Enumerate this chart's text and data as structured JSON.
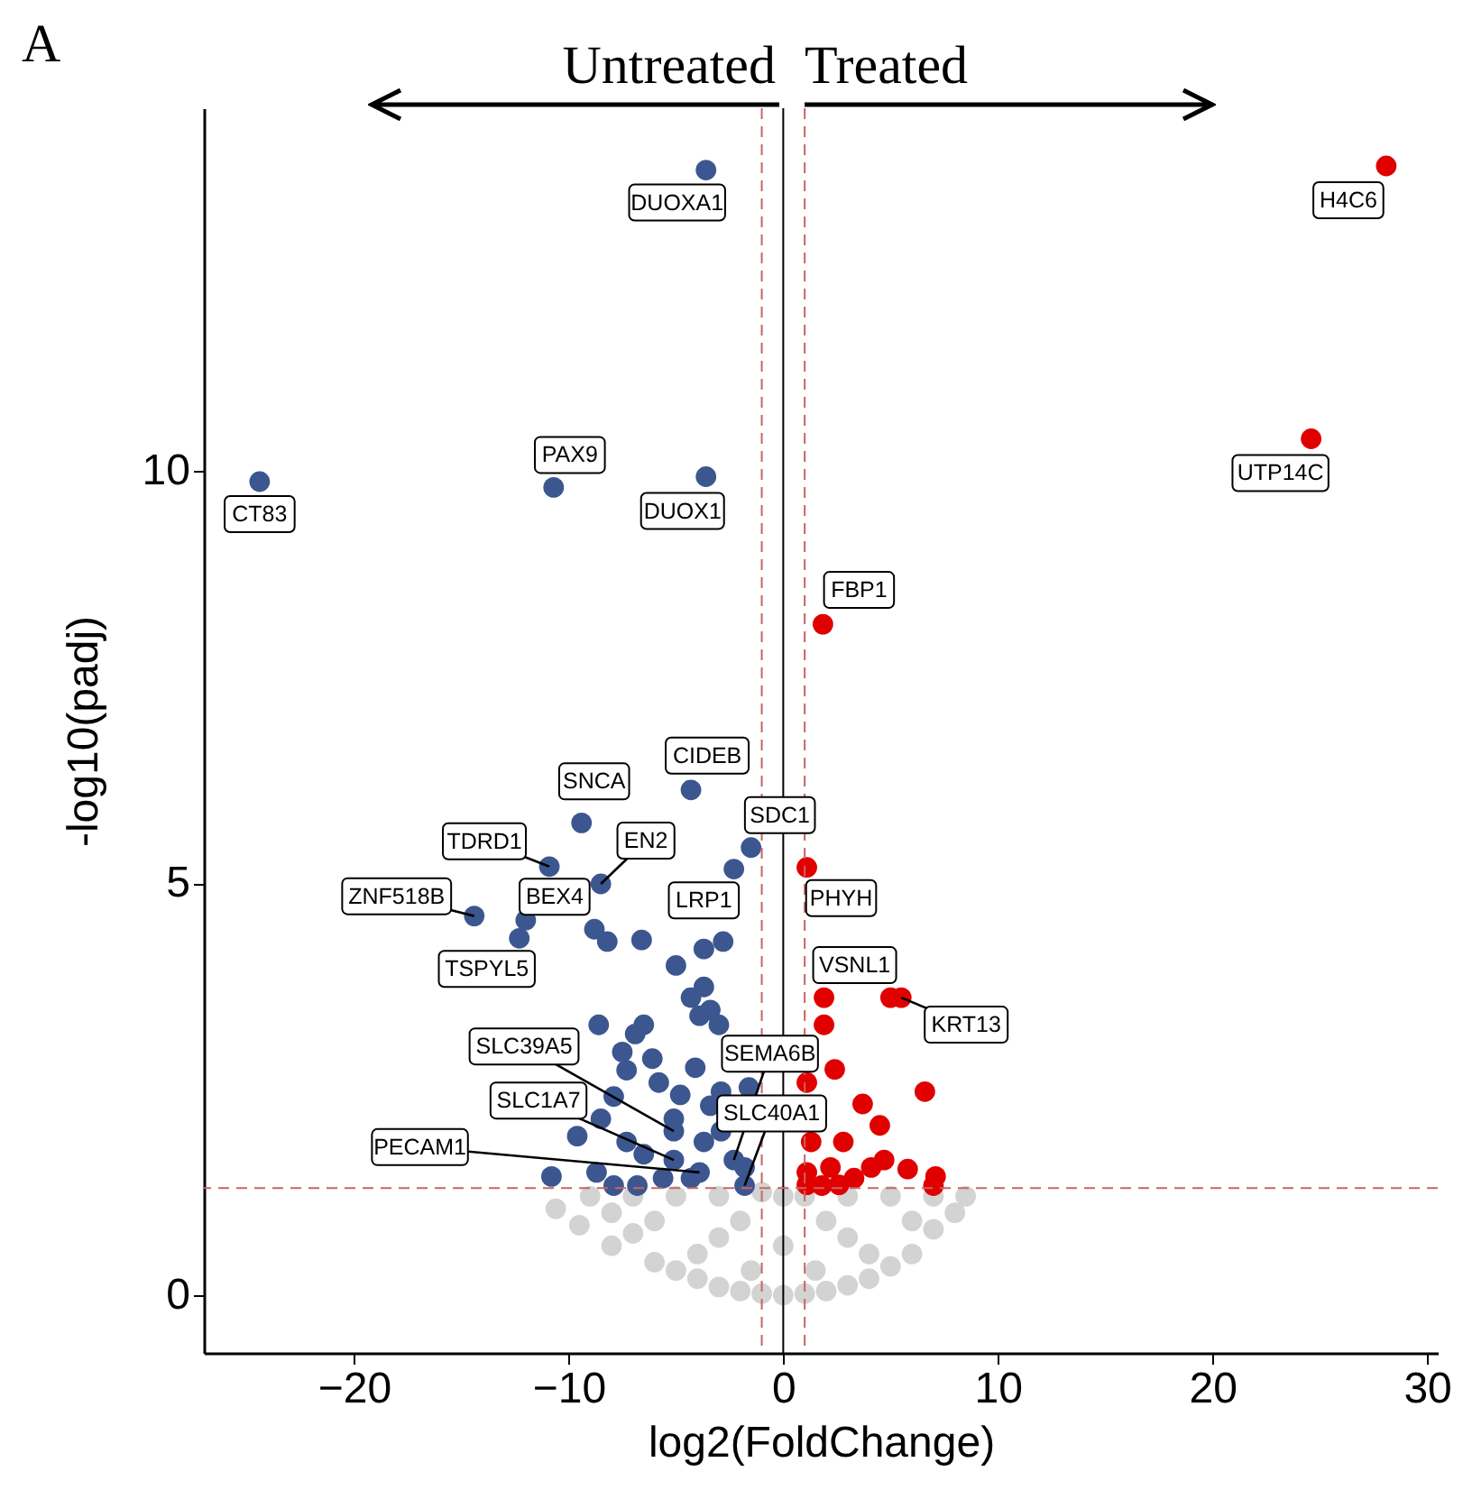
{
  "chart_data": {
    "type": "scatter",
    "xlabel": "log2(FoldChange)",
    "ylabel": "-log10(padj)",
    "xlim": [
      -27,
      30.5
    ],
    "xticks": [
      -20,
      -10,
      0,
      10,
      20,
      30
    ],
    "ylim": [
      -0.7,
      14.4
    ],
    "yticks": [
      0,
      5,
      10
    ],
    "grid": false,
    "marker": "circle",
    "series": [
      {
        "color": "#d3d3d3",
        "x": [
          -10.6,
          -9.5,
          -8,
          -7,
          -6,
          -5,
          -4,
          -3,
          -2,
          -1,
          0,
          1,
          2,
          3,
          4,
          5,
          6,
          7,
          8,
          8.5,
          -9,
          -7,
          -5,
          -3,
          -1,
          0,
          1,
          3,
          5,
          7,
          -6,
          -3,
          0,
          3,
          6,
          -4,
          -1.5,
          1.5,
          4,
          -8,
          -2,
          2
        ],
        "values": [
          1.05,
          0.85,
          0.6,
          0.75,
          0.4,
          0.3,
          0.2,
          0.1,
          0.05,
          0.02,
          0,
          0.02,
          0.05,
          0.12,
          0.2,
          0.35,
          0.5,
          0.8,
          1.0,
          1.2,
          1.2,
          1.2,
          1.2,
          1.2,
          1.25,
          1.2,
          1.2,
          1.2,
          1.2,
          1.2,
          0.9,
          0.7,
          0.6,
          0.7,
          0.9,
          0.5,
          0.3,
          0.3,
          0.5,
          1.0,
          0.9,
          0.9
        ]
      },
      {
        "color": "#3c5690",
        "x": [
          -3.6,
          -24.4,
          -10.7,
          -3.6,
          -4.3,
          -9.4,
          -1.5,
          -10.9,
          -2.3,
          -8.5,
          -14.4,
          -12.0,
          -12.3,
          -8.8,
          -8.2,
          -6.6,
          -3.7,
          -2.8,
          -5.0,
          -3.7,
          -4.3,
          -3.4,
          -3.9,
          -3.0,
          -8.6,
          -6.5,
          -6.9,
          -7.5,
          -6.1,
          -7.3,
          -4.1,
          -5.8,
          -7.9,
          -4.8,
          -2.9,
          -1.6,
          -9.6,
          -8.5,
          -7.3,
          -10.8,
          -8.7,
          -6.5,
          -5.6,
          -4.3,
          -3.7,
          -2.9,
          -5.1,
          -3.4,
          -1.8,
          -7.9,
          -6.8,
          -5.1,
          -5.1,
          -3.9,
          -2.3,
          -1.8
        ],
        "values": [
          13.65,
          9.87,
          9.8,
          9.93,
          6.13,
          5.73,
          5.43,
          5.2,
          5.17,
          4.99,
          4.6,
          4.55,
          4.33,
          4.44,
          4.29,
          4.31,
          4.2,
          4.29,
          4.0,
          3.74,
          3.61,
          3.46,
          3.39,
          3.28,
          3.28,
          3.28,
          3.17,
          2.95,
          2.87,
          2.73,
          2.76,
          2.58,
          2.41,
          2.43,
          2.47,
          2.52,
          1.93,
          2.14,
          1.86,
          1.44,
          1.49,
          1.71,
          1.42,
          1.42,
          1.86,
          1.99,
          2.14,
          2.3,
          1.55,
          1.33,
          1.33,
          1.99,
          1.64,
          1.49,
          1.64,
          1.33
        ]
      },
      {
        "color": "#e00000",
        "x": [
          28.1,
          24.6,
          1.85,
          1.1,
          1.9,
          5.0,
          5.5,
          1.9,
          2.4,
          6.6,
          1.1,
          3.7,
          4.5,
          2.8,
          4.7,
          5.8,
          7.1,
          7.0,
          1.3,
          1.1,
          2.2,
          3.3,
          4.1,
          1.1,
          1.8,
          2.6
        ],
        "values": [
          13.7,
          10.39,
          8.14,
          5.19,
          3.61,
          3.61,
          3.61,
          3.28,
          2.74,
          2.47,
          2.58,
          2.32,
          2.06,
          1.86,
          1.64,
          1.53,
          1.44,
          1.33,
          1.86,
          1.49,
          1.55,
          1.42,
          1.55,
          1.34,
          1.33,
          1.34
        ]
      }
    ],
    "ref_lines": [
      {
        "axis": "x",
        "value": 0,
        "color": "#000000",
        "line_style": "solid"
      },
      {
        "axis": "x",
        "value": -1,
        "color": "#c86464",
        "line_style": "dashed"
      },
      {
        "axis": "x",
        "value": 1,
        "color": "#c86464",
        "line_style": "dashed"
      },
      {
        "axis": "y",
        "value": 1.3,
        "color": "#c86464",
        "line_style": "dashed"
      }
    ],
    "annotations": [
      "A",
      "Untreated",
      "Treated",
      {
        "text": "DUOXA1",
        "x": -3.6,
        "y": 13.65
      },
      {
        "text": "CT83",
        "x": -24.4,
        "y": 9.87
      },
      {
        "text": "PAX9",
        "x": -10.7,
        "y": 9.8
      },
      {
        "text": "DUOX1",
        "x": -3.6,
        "y": 9.93
      },
      {
        "text": "H4C6",
        "x": 28.1,
        "y": 13.7
      },
      {
        "text": "UTP14C",
        "x": 24.6,
        "y": 10.39
      },
      {
        "text": "FBP1",
        "x": 1.85,
        "y": 8.14
      },
      {
        "text": "CIDEB",
        "x": -4.3,
        "y": 6.13
      },
      {
        "text": "SNCA",
        "x": -9.4,
        "y": 5.73
      },
      {
        "text": "SDC1",
        "x": -1.5,
        "y": 5.43
      },
      {
        "text": "TDRD1",
        "x": -10.9,
        "y": 5.2
      },
      {
        "text": "EN2",
        "x": -8.5,
        "y": 4.99
      },
      {
        "text": "ZNF518B",
        "x": -14.4,
        "y": 4.6
      },
      {
        "text": "BEX4",
        "x": -12.0,
        "y": 4.55
      },
      {
        "text": "TSPYL5",
        "x": -12.3,
        "y": 4.33
      },
      {
        "text": "LRP1",
        "x": -3.7,
        "y": 4.2
      },
      {
        "text": "PHYH",
        "x": 1.1,
        "y": 5.19
      },
      {
        "text": "VSNL1",
        "x": 1.9,
        "y": 3.61
      },
      {
        "text": "KRT13",
        "x": 5.5,
        "y": 3.61
      },
      {
        "text": "SLC39A5",
        "x": -5.1,
        "y": 1.99
      },
      {
        "text": "SLC1A7",
        "x": -5.1,
        "y": 1.64
      },
      {
        "text": "PECAM1",
        "x": -3.9,
        "y": 1.49
      },
      {
        "text": "SEMA6B",
        "x": -2.3,
        "y": 1.64
      },
      {
        "text": "SLC40A1",
        "x": -1.8,
        "y": 1.33
      }
    ]
  }
}
